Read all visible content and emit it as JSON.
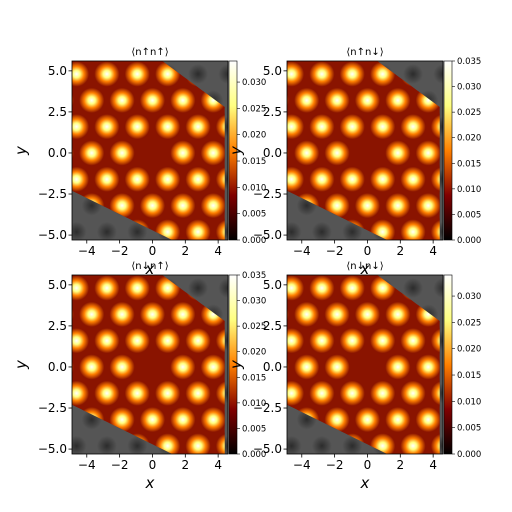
{
  "chart_data": [
    {
      "type": "heatmap",
      "title": "⟨n↑n↑⟩",
      "xlabel": "x",
      "ylabel": "y",
      "xlim": [
        -4.9,
        4.6
      ],
      "ylim": [
        -5.3,
        5.6
      ],
      "xticks": [
        "−4",
        "−2",
        "0",
        "2",
        "4"
      ],
      "xtick_values": [
        -4,
        -2,
        0,
        2,
        4
      ],
      "yticks": [
        "5.0",
        "2.5",
        "0.0",
        "−2.5",
        "−5.0"
      ],
      "ytick_values": [
        5,
        2.5,
        0,
        -2.5,
        -5
      ],
      "colorbar": {
        "range": [
          0,
          0.034
        ],
        "ticks": [
          "0.000",
          "0.005",
          "0.010",
          "0.015",
          "0.020",
          "0.025",
          "0.030"
        ],
        "tick_values": [
          0,
          0.005,
          0.01,
          0.015,
          0.02,
          0.025,
          0.03
        ],
        "colormap": "afmhot"
      },
      "lattice": {
        "spacing": 1.85,
        "peak": 0.031,
        "vacancy": [
          0.0,
          0.0
        ]
      }
    },
    {
      "type": "heatmap",
      "title": "⟨n↑n↓⟩",
      "xlabel": "x",
      "ylabel": "y",
      "xlim": [
        -4.9,
        4.6
      ],
      "ylim": [
        -5.3,
        5.6
      ],
      "xticks": [
        "−4",
        "−2",
        "0",
        "2",
        "4"
      ],
      "xtick_values": [
        -4,
        -2,
        0,
        2,
        4
      ],
      "yticks": [
        "5.0",
        "2.5",
        "0.0",
        "−2.5",
        "−5.0"
      ],
      "ytick_values": [
        5,
        2.5,
        0,
        -2.5,
        -5
      ],
      "colorbar": {
        "range": [
          0,
          0.035
        ],
        "ticks": [
          "0.000",
          "0.005",
          "0.010",
          "0.015",
          "0.020",
          "0.025",
          "0.030",
          "0.035"
        ],
        "tick_values": [
          0,
          0.005,
          0.01,
          0.015,
          0.02,
          0.025,
          0.03,
          0.035
        ],
        "colormap": "afmhot"
      },
      "lattice": {
        "spacing": 1.85,
        "peak": 0.028,
        "vacancy": [
          0.0,
          0.0
        ]
      }
    },
    {
      "type": "heatmap",
      "title": "⟨n↓n↑⟩",
      "xlabel": "x",
      "ylabel": "y",
      "xlim": [
        -4.9,
        4.6
      ],
      "ylim": [
        -5.3,
        5.6
      ],
      "xticks": [
        "−4",
        "−2",
        "0",
        "2",
        "4"
      ],
      "xtick_values": [
        -4,
        -2,
        0,
        2,
        4
      ],
      "yticks": [
        "5.0",
        "2.5",
        "0.0",
        "−2.5",
        "−5.0"
      ],
      "ytick_values": [
        5,
        2.5,
        0,
        -2.5,
        -5
      ],
      "colorbar": {
        "range": [
          0,
          0.035
        ],
        "ticks": [
          "0.000",
          "0.005",
          "0.010",
          "0.015",
          "0.020",
          "0.025",
          "0.030",
          "0.035"
        ],
        "tick_values": [
          0,
          0.005,
          0.01,
          0.015,
          0.02,
          0.025,
          0.03,
          0.035
        ],
        "colormap": "afmhot"
      },
      "lattice": {
        "spacing": 1.85,
        "peak": 0.028,
        "vacancy": [
          0.0,
          0.0
        ]
      }
    },
    {
      "type": "heatmap",
      "title": "⟨n↓n↓⟩",
      "xlabel": "x",
      "ylabel": "y",
      "xlim": [
        -4.9,
        4.6
      ],
      "ylim": [
        -5.3,
        5.6
      ],
      "xticks": [
        "−4",
        "−2",
        "0",
        "2",
        "4"
      ],
      "xtick_values": [
        -4,
        -2,
        0,
        2,
        4
      ],
      "yticks": [
        "5.0",
        "2.5",
        "0.0",
        "−2.5",
        "−5.0"
      ],
      "ytick_values": [
        5,
        2.5,
        0,
        -2.5,
        -5
      ],
      "colorbar": {
        "range": [
          0,
          0.034
        ],
        "ticks": [
          "0.000",
          "0.005",
          "0.010",
          "0.015",
          "0.020",
          "0.025",
          "0.030"
        ],
        "tick_values": [
          0,
          0.005,
          0.01,
          0.015,
          0.02,
          0.025,
          0.03
        ],
        "colormap": "afmhot"
      },
      "lattice": {
        "spacing": 1.85,
        "peak": 0.031,
        "vacancy": [
          0.0,
          0.0
        ]
      }
    }
  ]
}
